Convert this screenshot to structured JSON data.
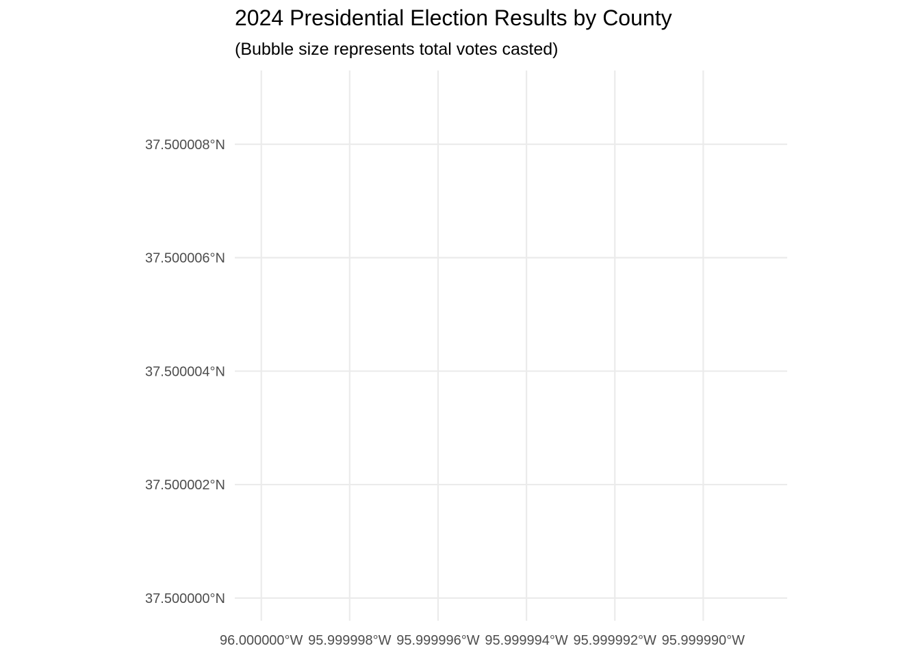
{
  "chart_data": {
    "type": "scatter",
    "title": "2024 Presidential Election Results by County",
    "subtitle": "(Bubble size represents total votes casted)",
    "xlabel": "",
    "ylabel": "",
    "x_ticks": [
      {
        "value": -96.0,
        "label": "96.000000°W"
      },
      {
        "value": -95.999998,
        "label": "95.999998°W"
      },
      {
        "value": -95.999996,
        "label": "95.999996°W"
      },
      {
        "value": -95.999994,
        "label": "95.999994°W"
      },
      {
        "value": -95.999992,
        "label": "95.999992°W"
      },
      {
        "value": -95.99999,
        "label": "95.999990°W"
      }
    ],
    "y_ticks": [
      {
        "value": 37.5,
        "label": "37.500000°N"
      },
      {
        "value": 37.500002,
        "label": "37.500002°N"
      },
      {
        "value": 37.500004,
        "label": "37.500004°N"
      },
      {
        "value": 37.500006,
        "label": "37.500006°N"
      },
      {
        "value": 37.500008,
        "label": "37.500008°N"
      }
    ],
    "xlim": [
      -96.0000006,
      -95.9999881
    ],
    "ylim": [
      37.4999996,
      37.5000093
    ],
    "points": [],
    "grid": true,
    "colors": {
      "grid": "#ebebeb",
      "tick_text": "#4d4d4d",
      "background": "#ffffff"
    }
  }
}
